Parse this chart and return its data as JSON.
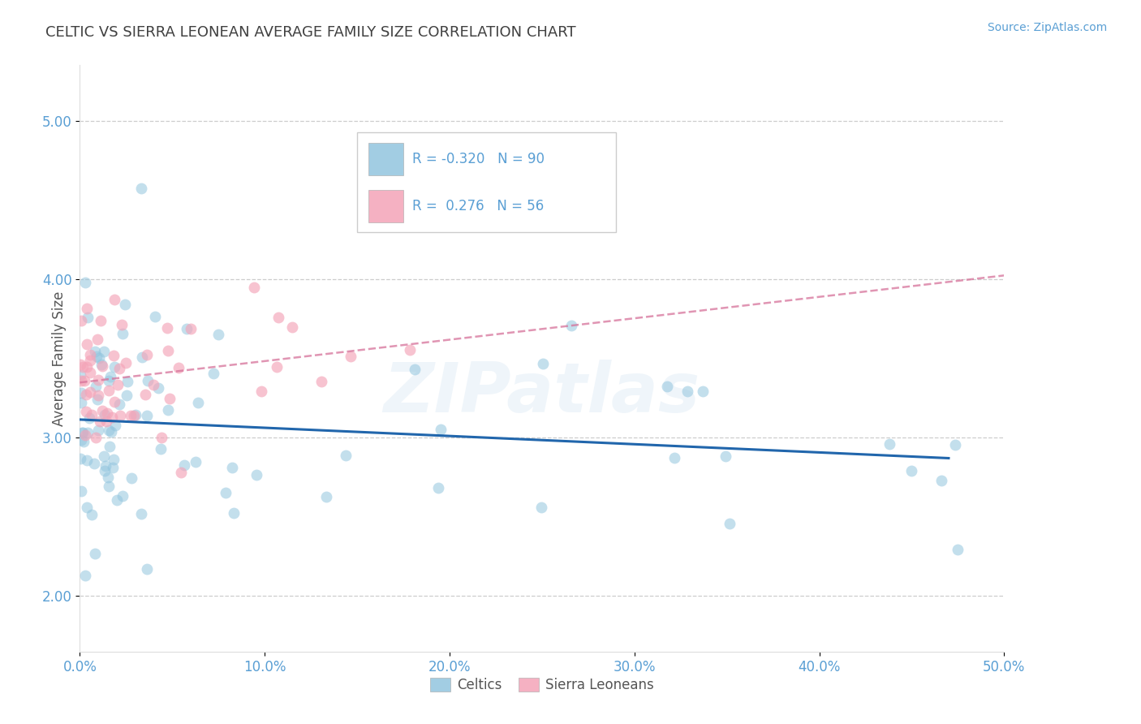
{
  "title": "CELTIC VS SIERRA LEONEAN AVERAGE FAMILY SIZE CORRELATION CHART",
  "source": "Source: ZipAtlas.com",
  "ylabel": "Average Family Size",
  "x_ticks": [
    0.0,
    10.0,
    20.0,
    30.0,
    40.0,
    50.0
  ],
  "x_tick_labels": [
    "0.0%",
    "10.0%",
    "20.0%",
    "30.0%",
    "40.0%",
    "50.0%"
  ],
  "y_ticks": [
    2.0,
    3.0,
    4.0,
    5.0
  ],
  "y_tick_labels": [
    "2.00",
    "3.00",
    "4.00",
    "5.00"
  ],
  "xlim": [
    0.0,
    50.0
  ],
  "ylim": [
    1.65,
    5.35
  ],
  "celtic_R": -0.32,
  "celtic_N": 90,
  "sl_R": 0.276,
  "sl_N": 56,
  "celtic_color": "#92c5de",
  "sl_color": "#f4a4b8",
  "celtic_line_color": "#2166ac",
  "sl_line_color": "#d6729a",
  "legend_labels": [
    "Celtics",
    "Sierra Leoneans"
  ],
  "watermark": "ZIPatlas",
  "background_color": "#ffffff",
  "grid_color": "#c8c8c8",
  "title_color": "#404040",
  "source_color": "#5a9fd4",
  "axis_label_color": "#555555",
  "tick_label_color": "#5a9fd4",
  "legend_box_color": "#5a9fd4",
  "legend_text_color": "#555555"
}
